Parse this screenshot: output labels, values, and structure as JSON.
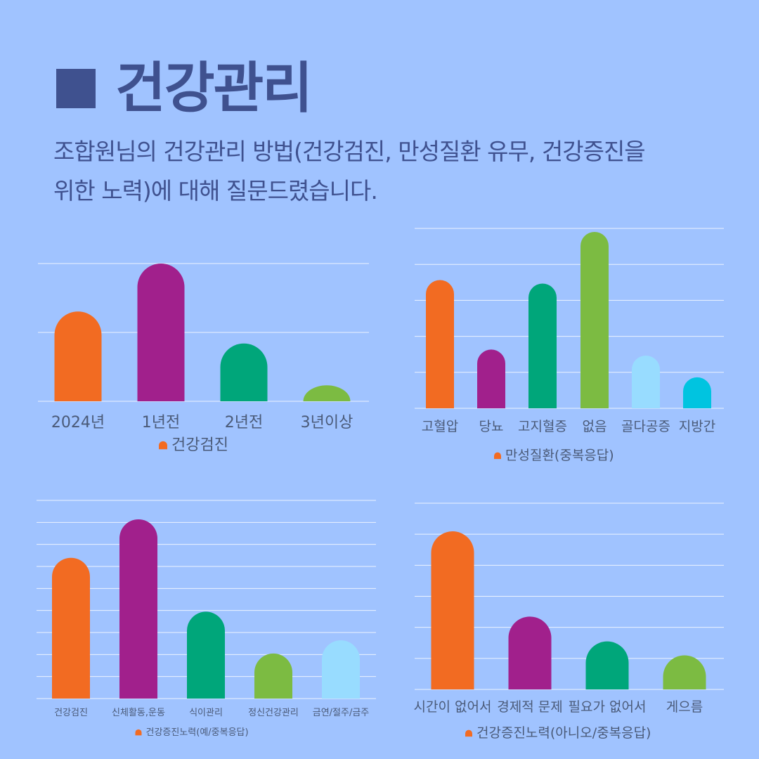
{
  "header": {
    "title": "건강관리",
    "subtitle_line1": "조합원님의 건강관리 방법(건강검진, 만성질환 유무, 건강증진을",
    "subtitle_line2": "위한 노력)에 대해 질문드렸습니다."
  },
  "colors": {
    "background": "#a0c3ff",
    "title": "#3f518f",
    "orange": "#f26b22",
    "purple": "#a1208c",
    "teal": "#00a67a",
    "green": "#7cbb42",
    "lightblue": "#98dcff",
    "cyan": "#00c4e0",
    "grid": "#ffffff"
  },
  "chart_data": [
    {
      "type": "bar",
      "legend": "건강검진",
      "categories": [
        "2024년",
        "1년전",
        "2년전",
        "3년이상"
      ],
      "values": [
        73,
        112,
        47,
        13
      ],
      "colors": [
        "#f26b22",
        "#a1208c",
        "#00a67a",
        "#7cbb42"
      ],
      "ylim": [
        0,
        120
      ],
      "grid": true,
      "legend_position": "bottom"
    },
    {
      "type": "bar",
      "legend": "만성질환(중복응답)",
      "categories": [
        "고혈압",
        "당뇨",
        "고지혈증",
        "없음",
        "골다공증",
        "지방간"
      ],
      "values": [
        36,
        16.5,
        35,
        49.5,
        14.8,
        8.7
      ],
      "colors": [
        "#f26b22",
        "#a1208c",
        "#00a67a",
        "#7cbb42",
        "#98dcff",
        "#00c4e0"
      ],
      "ylim": [
        0,
        50
      ],
      "grid": true,
      "legend_position": "bottom"
    },
    {
      "type": "bar",
      "legend": "건강증진노력(예/중복응답)",
      "categories": [
        "건강검진",
        "신체활동,운동",
        "식이관리",
        "정신건강관리",
        "금연/절주/금주"
      ],
      "values": [
        64,
        81.5,
        39.5,
        20.5,
        26.5
      ],
      "colors": [
        "#f26b22",
        "#a1208c",
        "#00a67a",
        "#7cbb42",
        "#98dcff"
      ],
      "ylim": [
        0,
        90
      ],
      "grid": true,
      "legend_position": "bottom"
    },
    {
      "type": "bar",
      "legend": "건강증진노력(아니오/중복응답)",
      "categories": [
        "시간이 없어서",
        "경제적 문제",
        "필요가 없어서",
        "게으름"
      ],
      "values": [
        51,
        23.5,
        15.5,
        11
      ],
      "colors": [
        "#f26b22",
        "#a1208c",
        "#00a67a",
        "#7cbb42"
      ],
      "ylim": [
        0,
        60
      ],
      "grid": true,
      "legend_position": "bottom"
    }
  ]
}
